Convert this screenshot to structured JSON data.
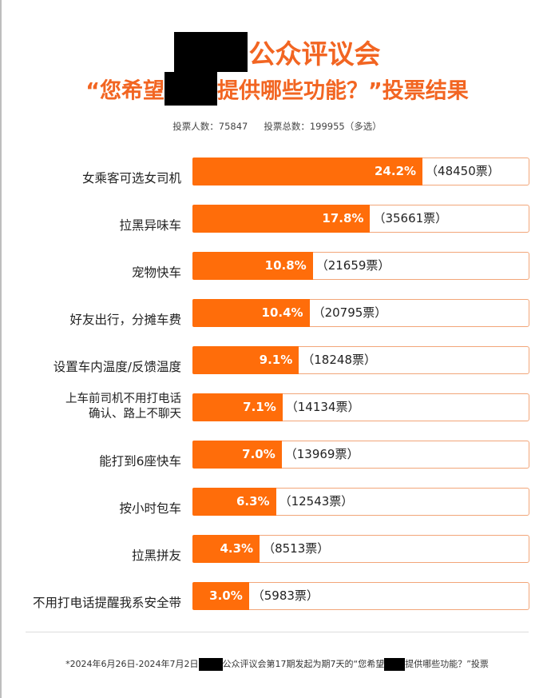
{
  "title": {
    "suffix": "公众评议会",
    "redacted": true
  },
  "subtitle": {
    "prefix": "“您希望",
    "suffix": "提供哪些功能？”投票结果"
  },
  "stats": {
    "voters": "投票人数：75847",
    "votes": "投票总数：199955（多选）"
  },
  "footer": {
    "part1": "*2024年6月26日-2024年7月2日",
    "part2": "公众评议会第17期发起为期7天的“您希望",
    "part3": "提供哪些功能？”投票"
  },
  "colors": {
    "bar": "#ff6d0a",
    "title": "#f26522",
    "track_border": "#f2a679"
  },
  "chart_data": {
    "type": "bar",
    "orientation": "horizontal",
    "categories": [
      "女乘客可选女司机",
      "拉黑异味车",
      "宠物快车",
      "好友出行，分摊车费",
      "设置车内温度/反馈温度",
      "上车前司机不用打电话\n确认、路上不聊天",
      "能打到6座快车",
      "按小时包车",
      "拉黑拼友",
      "不用打电话提醒我系安全带"
    ],
    "values": [
      24.2,
      17.8,
      10.8,
      10.4,
      9.1,
      7.1,
      7.0,
      6.3,
      4.3,
      3.0
    ],
    "value_labels": [
      "24.2%",
      "17.8%",
      "10.8%",
      "10.4%",
      "9.1%",
      "7.1%",
      "7.0%",
      "6.3%",
      "4.3%",
      "3.0%"
    ],
    "counts": [
      "（48450票）",
      "（35661票）",
      "（21659票）",
      "（20795票）",
      "（18248票）",
      "（14134票）",
      "（13969票）",
      "（12543票）",
      "（8513票）",
      "（5983票）"
    ],
    "grid": false,
    "legend": "none"
  }
}
